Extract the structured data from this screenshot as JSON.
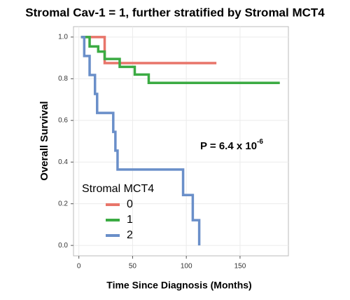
{
  "chart_data": {
    "type": "step",
    "title": "Stromal Cav-1 = 1, further stratified by Stromal MCT4",
    "x_label": "Time Since Diagnosis (Months)",
    "y_label": "Overall Survival",
    "annotation": {
      "text": "P = 6.4 x 10",
      "superscript": "-6"
    },
    "legend_title": "Stromal MCT4",
    "legend_position": "bottom-left",
    "grid": true,
    "xlim": [
      -5,
      195
    ],
    "ylim": [
      -0.05,
      1.05
    ],
    "xticks": [
      0,
      50,
      100,
      150
    ],
    "yticks": [
      {
        "value": 0,
        "label": "0.0"
      },
      0.2,
      0.4,
      0.6,
      0.8,
      {
        "value": 1,
        "label": "1.0"
      }
    ],
    "series": [
      {
        "name": "0",
        "color": "#e8756a",
        "x": [
          2,
          24,
          128
        ],
        "values": [
          1,
          0.875,
          0.875
        ]
      },
      {
        "name": "1",
        "color": "#3bab43",
        "x": [
          2,
          10,
          18,
          24,
          38,
          52,
          65,
          187
        ],
        "values": [
          1,
          0.955,
          0.93,
          0.895,
          0.857,
          0.82,
          0.78,
          0.78
        ]
      },
      {
        "name": "2",
        "color": "#6a8fc9",
        "x": [
          2,
          5,
          10,
          15,
          17,
          32,
          34,
          36,
          97,
          106,
          112
        ],
        "values": [
          1,
          0.909,
          0.818,
          0.727,
          0.636,
          0.545,
          0.455,
          0.364,
          0.242,
          0.121,
          0
        ]
      }
    ]
  }
}
